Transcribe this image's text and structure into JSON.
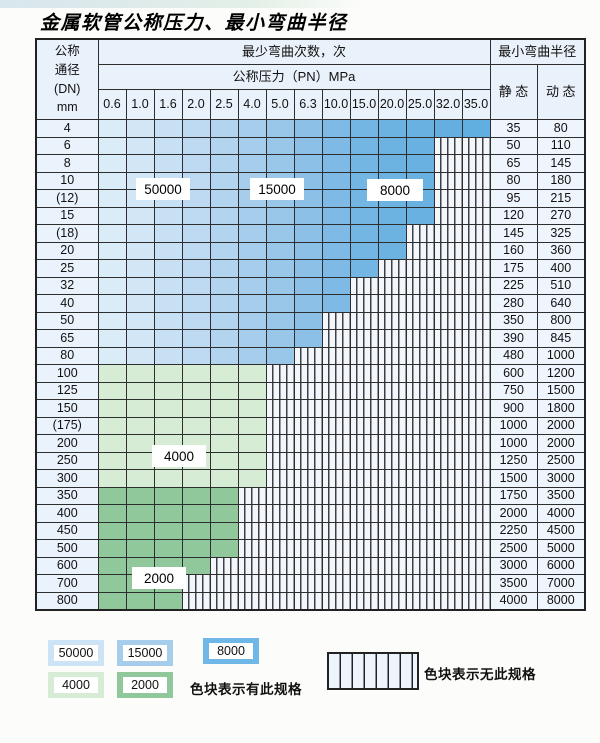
{
  "page": {
    "title": "金属软管公称压力、最小弯曲半径"
  },
  "table": {
    "header": {
      "dn_lines": [
        "公称",
        "通径",
        "(DN)",
        "mm"
      ],
      "bend_cycles": "最少弯曲次数，次",
      "pressure": "公称压力（PN）MPa",
      "min_radius": "最小弯曲半径",
      "static_label": "静 态",
      "dynamic_label": "动 态",
      "pressure_cols": [
        "0.6",
        "1.0",
        "1.6",
        "2.0",
        "2.5",
        "4.0",
        "5.0",
        "6.3",
        "10.0",
        "15.0",
        "20.0",
        "25.0",
        "32.0",
        "35.0"
      ]
    },
    "rows": [
      {
        "dn": "4",
        "group": "blue",
        "colored": 14,
        "static": "35",
        "dynamic": "80"
      },
      {
        "dn": "6",
        "group": "blue",
        "colored": 12,
        "static": "50",
        "dynamic": "110"
      },
      {
        "dn": "8",
        "group": "blue",
        "colored": 12,
        "static": "65",
        "dynamic": "145"
      },
      {
        "dn": "10",
        "group": "blue",
        "colored": 12,
        "static": "80",
        "dynamic": "180"
      },
      {
        "dn": "(12)",
        "group": "blue",
        "colored": 12,
        "static": "95",
        "dynamic": "215"
      },
      {
        "dn": "15",
        "group": "blue",
        "colored": 12,
        "static": "120",
        "dynamic": "270"
      },
      {
        "dn": "(18)",
        "group": "blue",
        "colored": 11,
        "static": "145",
        "dynamic": "325"
      },
      {
        "dn": "20",
        "group": "blue",
        "colored": 11,
        "static": "160",
        "dynamic": "360"
      },
      {
        "dn": "25",
        "group": "blue",
        "colored": 10,
        "static": "175",
        "dynamic": "400"
      },
      {
        "dn": "32",
        "group": "blue",
        "colored": 9,
        "static": "225",
        "dynamic": "510"
      },
      {
        "dn": "40",
        "group": "blue",
        "colored": 9,
        "static": "280",
        "dynamic": "640"
      },
      {
        "dn": "50",
        "group": "blue",
        "colored": 8,
        "static": "350",
        "dynamic": "800"
      },
      {
        "dn": "65",
        "group": "blue",
        "colored": 8,
        "static": "390",
        "dynamic": "845"
      },
      {
        "dn": "80",
        "group": "blue",
        "colored": 7,
        "static": "480",
        "dynamic": "1000"
      },
      {
        "dn": "100",
        "group": "g4000",
        "colored": 6,
        "static": "600",
        "dynamic": "1200"
      },
      {
        "dn": "125",
        "group": "g4000",
        "colored": 6,
        "static": "750",
        "dynamic": "1500"
      },
      {
        "dn": "150",
        "group": "g4000",
        "colored": 6,
        "static": "900",
        "dynamic": "1800"
      },
      {
        "dn": "(175)",
        "group": "g4000",
        "colored": 6,
        "static": "1000",
        "dynamic": "2000"
      },
      {
        "dn": "200",
        "group": "g4000",
        "colored": 6,
        "static": "1000",
        "dynamic": "2000"
      },
      {
        "dn": "250",
        "group": "g4000",
        "colored": 6,
        "static": "1250",
        "dynamic": "2500"
      },
      {
        "dn": "300",
        "group": "g4000",
        "colored": 6,
        "static": "1500",
        "dynamic": "3000"
      },
      {
        "dn": "350",
        "group": "g2000",
        "colored": 5,
        "static": "1750",
        "dynamic": "3500"
      },
      {
        "dn": "400",
        "group": "g2000",
        "colored": 5,
        "static": "2000",
        "dynamic": "4000"
      },
      {
        "dn": "450",
        "group": "g2000",
        "colored": 5,
        "static": "2250",
        "dynamic": "4500"
      },
      {
        "dn": "500",
        "group": "g2000",
        "colored": 5,
        "static": "2500",
        "dynamic": "5000"
      },
      {
        "dn": "600",
        "group": "g2000",
        "colored": 4,
        "static": "3000",
        "dynamic": "6000"
      },
      {
        "dn": "700",
        "group": "g2000",
        "colored": 3,
        "static": "3500",
        "dynamic": "7000"
      },
      {
        "dn": "800",
        "group": "g2000",
        "colored": 3,
        "static": "4000",
        "dynamic": "8000"
      }
    ],
    "overlay_labels": [
      {
        "text": "50000"
      },
      {
        "text": "15000"
      },
      {
        "text": "8000"
      },
      {
        "text": "4000"
      },
      {
        "text": "2000"
      }
    ]
  },
  "colors": {
    "blue_ramp": [
      "#dbecf9",
      "#d2e6f6",
      "#c8e0f4",
      "#bedaf2",
      "#b3d4ef",
      "#a6cdec",
      "#99c7ea",
      "#8cc0e7",
      "#7ebae5",
      "#74b6e3",
      "#6db3e2",
      "#68b1e1",
      "#64afe0",
      "#61aee0"
    ],
    "g4000": "#d6ecd4",
    "g2000": "#90c89c",
    "swatch_50000": "#cde4f6",
    "swatch_15000": "#a6cdec",
    "swatch_8000": "#6fb7e6",
    "swatch_4000": "#d6ecd4",
    "swatch_2000": "#90c89c"
  },
  "legend": {
    "sw_50000": "50000",
    "sw_15000": "15000",
    "sw_8000": "8000",
    "sw_4000": "4000",
    "sw_2000": "2000",
    "has_spec_note": "色块表示有此规格",
    "no_spec_note": "色块表示无此规格"
  }
}
